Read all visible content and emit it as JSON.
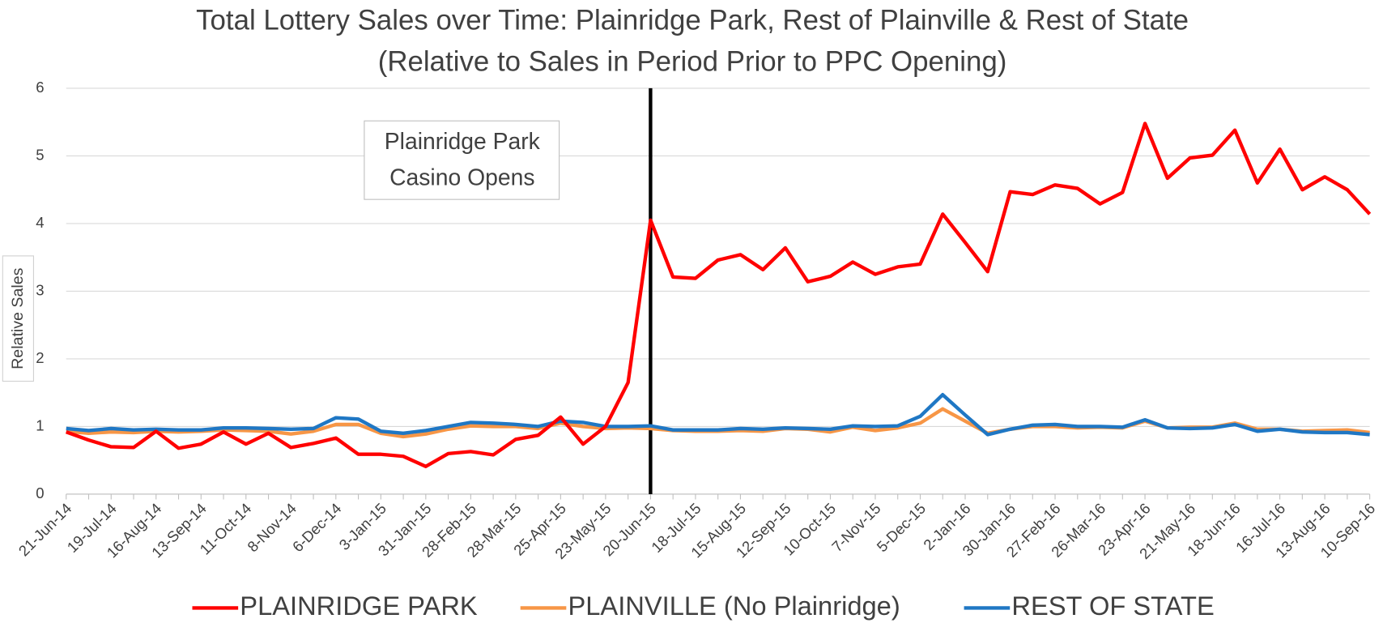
{
  "chart_data": {
    "type": "line",
    "title": [
      "Total Lottery Sales over Time: Plainridge Park, Rest of Plainville & Rest of State",
      "(Relative to Sales in Period Prior to PPC Opening)"
    ],
    "y_label": "Relative Sales",
    "annotation": {
      "text": [
        "Plainridge Park",
        "Casino Opens"
      ],
      "x": "20-Jun-15"
    },
    "categories": [
      "21-Jun-14",
      null,
      "19-Jul-14",
      null,
      "16-Aug-14",
      null,
      "13-Sep-14",
      null,
      "11-Oct-14",
      null,
      "8-Nov-14",
      null,
      "6-Dec-14",
      null,
      "3-Jan-15",
      null,
      "31-Jan-15",
      null,
      "28-Feb-15",
      null,
      "28-Mar-15",
      null,
      "25-Apr-15",
      null,
      "23-May-15",
      null,
      "20-Jun-15",
      null,
      "18-Jul-15",
      null,
      "15-Aug-15",
      null,
      "12-Sep-15",
      null,
      "10-Oct-15",
      null,
      "7-Nov-15",
      null,
      "5-Dec-15",
      null,
      "2-Jan-16",
      null,
      "30-Jan-16",
      null,
      "27-Feb-16",
      null,
      "26-Mar-16",
      null,
      "23-Apr-16",
      null,
      "21-May-16",
      null,
      "18-Jun-16",
      null,
      "16-Jul-16",
      null,
      "13-Aug-16",
      null,
      "10-Sep-16"
    ],
    "series": [
      {
        "name": "PLAINRIDGE PARK",
        "color": "#ff0000",
        "values": [
          0.92,
          0.8,
          0.7,
          0.69,
          0.93,
          0.68,
          0.74,
          0.92,
          0.74,
          0.9,
          0.69,
          0.75,
          0.83,
          0.59,
          0.59,
          0.56,
          0.41,
          0.6,
          0.63,
          0.58,
          0.81,
          0.87,
          1.14,
          0.74,
          1.0,
          1.65,
          4.05,
          3.21,
          3.19,
          3.46,
          3.54,
          3.32,
          3.64,
          3.14,
          3.22,
          3.43,
          3.25,
          3.36,
          3.4,
          4.14,
          3.72,
          3.29,
          4.47,
          4.43,
          4.57,
          4.52,
          4.29,
          4.46,
          5.48,
          4.67,
          4.97,
          5.01,
          5.38,
          4.6,
          5.1,
          4.5,
          4.69,
          4.5,
          4.14
        ]
      },
      {
        "name": "PLAINVILLE (No Plainridge)",
        "color": "#f79646",
        "values": [
          0.93,
          0.9,
          0.92,
          0.91,
          0.93,
          0.92,
          0.93,
          0.95,
          0.94,
          0.93,
          0.89,
          0.93,
          1.03,
          1.03,
          0.9,
          0.85,
          0.89,
          0.96,
          1.01,
          1.0,
          1.0,
          0.97,
          1.05,
          1.0,
          0.97,
          0.98,
          0.97,
          0.94,
          0.93,
          0.93,
          0.94,
          0.93,
          0.97,
          0.96,
          0.92,
          0.99,
          0.94,
          0.98,
          1.05,
          1.26,
          1.08,
          0.9,
          0.96,
          1.0,
          1.0,
          0.98,
          0.99,
          0.98,
          1.08,
          0.98,
          0.99,
          0.99,
          1.05,
          0.96,
          0.96,
          0.93,
          0.94,
          0.95,
          0.91
        ]
      },
      {
        "name": "REST OF STATE",
        "color": "#1f77c4",
        "values": [
          0.97,
          0.94,
          0.97,
          0.95,
          0.96,
          0.95,
          0.95,
          0.98,
          0.98,
          0.97,
          0.96,
          0.97,
          1.13,
          1.11,
          0.93,
          0.9,
          0.94,
          1.0,
          1.06,
          1.05,
          1.03,
          1.0,
          1.08,
          1.06,
          1.0,
          1.0,
          1.01,
          0.95,
          0.95,
          0.95,
          0.97,
          0.96,
          0.98,
          0.97,
          0.96,
          1.01,
          1.0,
          1.01,
          1.15,
          1.47,
          1.17,
          0.88,
          0.96,
          1.02,
          1.03,
          1.0,
          1.0,
          0.99,
          1.1,
          0.98,
          0.97,
          0.98,
          1.03,
          0.93,
          0.96,
          0.92,
          0.91,
          0.91,
          0.88
        ]
      }
    ],
    "ylim": [
      0,
      6
    ],
    "yticks": [
      0,
      1,
      2,
      3,
      4,
      5,
      6
    ],
    "grid": true,
    "legend": "bottom"
  }
}
